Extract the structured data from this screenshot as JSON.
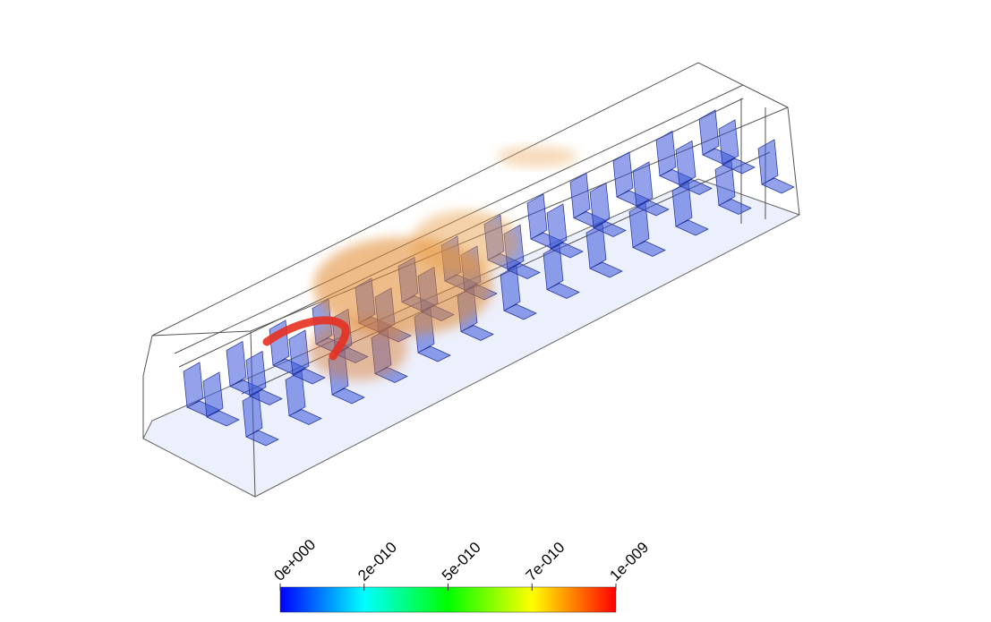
{
  "colorbar": {
    "ticks": [
      "0e+000",
      "2e-010",
      "5e-010",
      "7e-010",
      "1e-009"
    ]
  }
}
